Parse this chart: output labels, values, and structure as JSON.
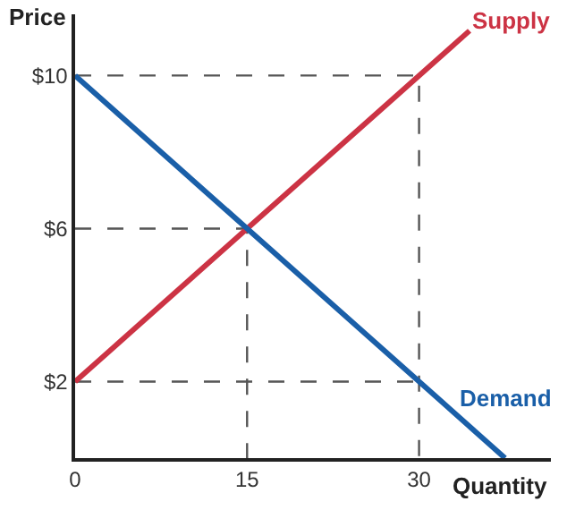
{
  "chart_data": {
    "type": "line",
    "xlabel": "Quantity",
    "ylabel": "Price",
    "xlim": [
      0,
      41.5
    ],
    "ylim": [
      0,
      11.6
    ],
    "xticks": [
      0,
      15,
      30
    ],
    "yticks": [
      {
        "value": 2,
        "label": "$2"
      },
      {
        "value": 6,
        "label": "$6"
      },
      {
        "value": 10,
        "label": "$10"
      }
    ],
    "legend": false,
    "marker": "none",
    "series": [
      {
        "x": [
          0,
          30,
          30
        ],
        "values": [
          10,
          10,
          0
        ],
        "color": "#555555",
        "line_style": "dashed"
      },
      {
        "x": [
          0,
          15,
          15
        ],
        "values": [
          6,
          6,
          0
        ],
        "color": "#555555",
        "line_style": "dashed"
      },
      {
        "x": [
          0,
          30
        ],
        "values": [
          2,
          2
        ],
        "color": "#555555",
        "line_style": "dashed"
      },
      {
        "name": "Supply",
        "x": [
          0,
          34.4
        ],
        "values": [
          2,
          11.17
        ],
        "color": "#cc3344",
        "line_style": "solid"
      },
      {
        "name": "Demand",
        "x": [
          0,
          37.5
        ],
        "values": [
          10,
          0
        ],
        "color": "#1a5fa8",
        "line_style": "solid"
      }
    ]
  }
}
